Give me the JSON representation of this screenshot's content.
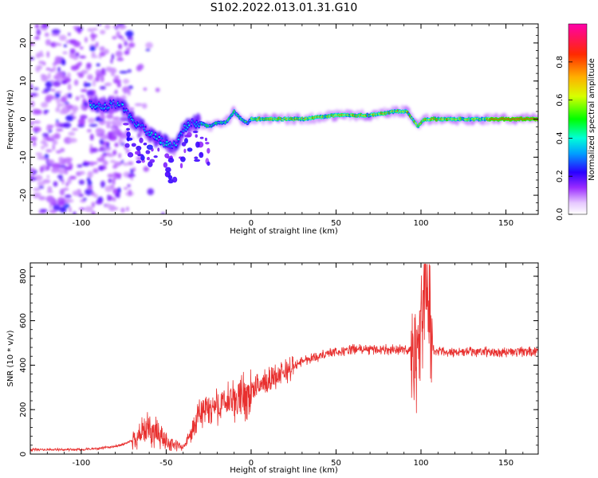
{
  "figure": {
    "title": "S102.2022.013.01.31.G10"
  },
  "chart_data": [
    {
      "type": "heatmap",
      "xlabel": "Height of straight line (km)",
      "ylabel": "Frequency (Hz)",
      "xlim": [
        -130,
        169
      ],
      "ylim": [
        -25,
        25
      ],
      "xticks": [
        -100,
        -50,
        0,
        50,
        100,
        150
      ],
      "yticks": [
        -20,
        -10,
        0,
        10,
        20
      ],
      "grid": false,
      "colorbar": {
        "label": "Normalized spectral amplitude",
        "range": [
          0,
          1
        ],
        "ticks": [
          0.0,
          0.2,
          0.4,
          0.6,
          0.8
        ]
      },
      "signal_track": [
        [
          -93,
          4
        ],
        [
          -88,
          3
        ],
        [
          -82,
          4
        ],
        [
          -76,
          4
        ],
        [
          -72,
          1
        ],
        [
          -68,
          -1
        ],
        [
          -64,
          -2
        ],
        [
          -60,
          -4
        ],
        [
          -56,
          -5
        ],
        [
          -52,
          -6
        ],
        [
          -48,
          -7
        ],
        [
          -44,
          -7
        ],
        [
          -40,
          -3
        ],
        [
          -36,
          -1
        ],
        [
          -30,
          -1
        ],
        [
          -25,
          -2
        ],
        [
          -20,
          -1
        ],
        [
          -15,
          -1
        ],
        [
          -10,
          2
        ],
        [
          -6,
          0
        ],
        [
          -2,
          -1
        ],
        [
          0,
          0
        ],
        [
          10,
          0
        ],
        [
          30,
          0
        ],
        [
          50,
          1
        ],
        [
          70,
          1
        ],
        [
          85,
          2
        ],
        [
          92,
          2
        ],
        [
          95,
          0
        ],
        [
          98,
          -2
        ],
        [
          102,
          0
        ],
        [
          110,
          0
        ],
        [
          130,
          0
        ],
        [
          169,
          0
        ]
      ]
    },
    {
      "type": "line",
      "xlabel": "Height of straight line (km)",
      "ylabel": "SNR (10 * v/v)",
      "xlim": [
        -130,
        169
      ],
      "ylim": [
        0,
        860
      ],
      "xticks": [
        -100,
        -50,
        0,
        50,
        100,
        150
      ],
      "yticks": [
        0,
        200,
        400,
        600,
        800
      ],
      "grid": false,
      "color": "#e8302f",
      "series": [
        {
          "x": [
            -130,
            -120,
            -110,
            -100,
            -90,
            -80,
            -75,
            -70,
            -65,
            -60,
            -55,
            -50,
            -45,
            -40,
            -35,
            -30,
            -25,
            -20,
            -15,
            -10,
            -5,
            0,
            5,
            10,
            15,
            20,
            25,
            30,
            40,
            50,
            60,
            70,
            80,
            90,
            95,
            98,
            100,
            102,
            104,
            106,
            110,
            120,
            140,
            169
          ],
          "y": [
            20,
            20,
            20,
            20,
            25,
            35,
            45,
            60,
            90,
            110,
            90,
            60,
            40,
            30,
            100,
            180,
            200,
            220,
            230,
            240,
            260,
            280,
            310,
            330,
            350,
            370,
            390,
            420,
            440,
            460,
            470,
            470,
            470,
            470,
            470,
            400,
            550,
            800,
            750,
            470,
            460,
            460,
            460,
            460
          ]
        }
      ]
    }
  ]
}
